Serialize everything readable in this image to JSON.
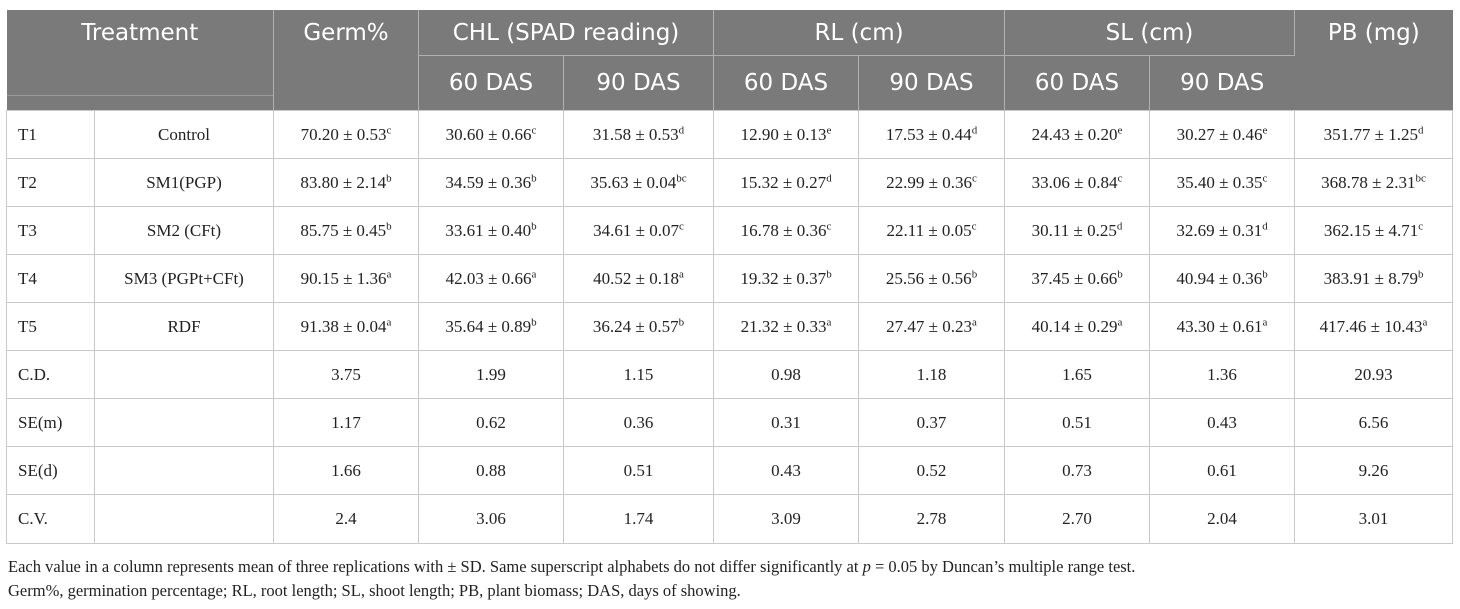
{
  "headers": {
    "treatment": "Treatment",
    "germ": "Germ%",
    "chl": "CHL (SPAD reading)",
    "rl": "RL (cm)",
    "sl": "SL (cm)",
    "pb": "PB (mg)",
    "das60": "60 DAS",
    "das90": "90 DAS"
  },
  "rows": [
    {
      "id": "T1",
      "name": "Control",
      "cells": [
        {
          "v": "70.20 ± 0.53",
          "s": "c"
        },
        {
          "v": "30.60 ± 0.66",
          "s": "c"
        },
        {
          "v": "31.58 ± 0.53",
          "s": "d"
        },
        {
          "v": "12.90 ± 0.13",
          "s": "e"
        },
        {
          "v": "17.53 ± 0.44",
          "s": "d"
        },
        {
          "v": "24.43 ± 0.20",
          "s": "e"
        },
        {
          "v": "30.27 ± 0.46",
          "s": "e"
        },
        {
          "v": "351.77 ± 1.25",
          "s": "d"
        }
      ]
    },
    {
      "id": "T2",
      "name": "SM1(PGP)",
      "cells": [
        {
          "v": "83.80 ± 2.14",
          "s": "b"
        },
        {
          "v": "34.59 ± 0.36",
          "s": "b"
        },
        {
          "v": "35.63 ± 0.04",
          "s": "bc"
        },
        {
          "v": "15.32 ± 0.27",
          "s": "d"
        },
        {
          "v": "22.99 ± 0.36",
          "s": "c"
        },
        {
          "v": "33.06 ± 0.84",
          "s": "c"
        },
        {
          "v": "35.40 ± 0.35",
          "s": "c"
        },
        {
          "v": "368.78 ± 2.31",
          "s": "bc"
        }
      ]
    },
    {
      "id": "T3",
      "name": "SM2 (CFt)",
      "cells": [
        {
          "v": "85.75 ± 0.45",
          "s": "b"
        },
        {
          "v": "33.61 ± 0.40",
          "s": "b"
        },
        {
          "v": "34.61 ± 0.07",
          "s": "c"
        },
        {
          "v": "16.78 ± 0.36",
          "s": "c"
        },
        {
          "v": "22.11 ± 0.05",
          "s": "c"
        },
        {
          "v": "30.11 ± 0.25",
          "s": "d"
        },
        {
          "v": "32.69 ± 0.31",
          "s": "d"
        },
        {
          "v": "362.15 ± 4.71",
          "s": "c"
        }
      ]
    },
    {
      "id": "T4",
      "name": "SM3 (PGPt+CFt)",
      "cells": [
        {
          "v": "90.15 ± 1.36",
          "s": "a"
        },
        {
          "v": "42.03 ± 0.66",
          "s": "a"
        },
        {
          "v": "40.52 ± 0.18",
          "s": "a"
        },
        {
          "v": "19.32 ± 0.37",
          "s": "b"
        },
        {
          "v": "25.56 ± 0.56",
          "s": "b"
        },
        {
          "v": "37.45 ± 0.66",
          "s": "b"
        },
        {
          "v": "40.94 ± 0.36",
          "s": "b"
        },
        {
          "v": "383.91 ± 8.79",
          "s": "b"
        }
      ]
    },
    {
      "id": "T5",
      "name": "RDF",
      "cells": [
        {
          "v": "91.38 ± 0.04",
          "s": "a"
        },
        {
          "v": "35.64 ± 0.89",
          "s": "b"
        },
        {
          "v": "36.24 ± 0.57",
          "s": "b"
        },
        {
          "v": "21.32 ± 0.33",
          "s": "a"
        },
        {
          "v": "27.47 ± 0.23",
          "s": "a"
        },
        {
          "v": "40.14 ± 0.29",
          "s": "a"
        },
        {
          "v": "43.30 ± 0.61",
          "s": "a"
        },
        {
          "v": "417.46 ± 10.43",
          "s": "a"
        }
      ]
    }
  ],
  "stats": [
    {
      "label": "C.D.",
      "values": [
        "3.75",
        "1.99",
        "1.15",
        "0.98",
        "1.18",
        "1.65",
        "1.36",
        "20.93"
      ]
    },
    {
      "label": "SE(m)",
      "values": [
        "1.17",
        "0.62",
        "0.36",
        "0.31",
        "0.37",
        "0.51",
        "0.43",
        "6.56"
      ]
    },
    {
      "label": "SE(d)",
      "values": [
        "1.66",
        "0.88",
        "0.51",
        "0.43",
        "0.52",
        "0.73",
        "0.61",
        "9.26"
      ]
    },
    {
      "label": "C.V.",
      "values": [
        "2.4",
        "3.06",
        "1.74",
        "3.09",
        "2.78",
        "2.70",
        "2.04",
        "3.01"
      ]
    }
  ],
  "notes": {
    "line1_a": "Each value in a column represents mean of three replications with ± SD. Same superscript alphabets do not differ significantly at ",
    "line1_p": "p",
    "line1_b": " = 0.05 by Duncan’s multiple range test.",
    "line2": "Germ%, germination percentage; RL, root length; SL, shoot length; PB, plant biomass; DAS, days of showing."
  }
}
